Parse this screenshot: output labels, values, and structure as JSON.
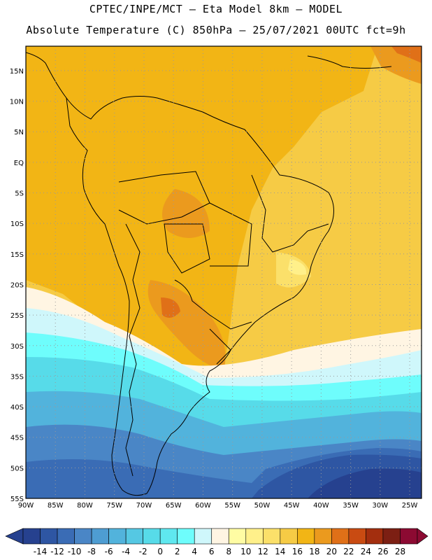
{
  "header": {
    "line1": "CPTEC/INPE/MCT –  Eta Model 8km – MODEL",
    "line2": "Absolute Temperature (C) 850hPa – 25/07/2021 00UTC fct=9h"
  },
  "map": {
    "lat_labels": [
      "15N",
      "10N",
      "5N",
      "EQ",
      "5S",
      "10S",
      "15S",
      "20S",
      "25S",
      "30S",
      "35S",
      "40S",
      "45S",
      "50S",
      "55S"
    ],
    "lon_labels": [
      "90W",
      "85W",
      "80W",
      "75W",
      "70W",
      "65W",
      "60W",
      "55W",
      "50W",
      "45W",
      "40W",
      "35W",
      "30W",
      "25W"
    ],
    "lat_values": [
      15,
      10,
      5,
      0,
      -5,
      -10,
      -15,
      -20,
      -25,
      -30,
      -35,
      -40,
      -45,
      -50,
      -55
    ],
    "lon_values": [
      -90,
      -85,
      -80,
      -75,
      -70,
      -65,
      -60,
      -55,
      -50,
      -45,
      -40,
      -35,
      -30,
      -25
    ],
    "lat_range": [
      -55,
      19
    ],
    "lon_range": [
      -90,
      -23
    ]
  },
  "colorbar": {
    "labels": [
      "-14",
      "-12",
      "-10",
      "-8",
      "-6",
      "-4",
      "-2",
      "0",
      "2",
      "4",
      "6",
      "8",
      "10",
      "12",
      "14",
      "16",
      "18",
      "20",
      "22",
      "24",
      "26",
      "28"
    ],
    "colors": [
      "#26418f",
      "#2e56a3",
      "#3a6cb5",
      "#4a86c6",
      "#4e9dd2",
      "#52b3dc",
      "#55c8e3",
      "#57dbe9",
      "#5fe8ef",
      "#6efdfc",
      "#cff7fb",
      "#fff5e3",
      "#fffca3",
      "#fff08a",
      "#fbe06a",
      "#f6cb45",
      "#f2b515",
      "#eb9a1e",
      "#e07018",
      "#c94b12",
      "#a32e0e",
      "#7c1f13",
      "#8c0a32"
    ],
    "low_arrow_color": "#26418f",
    "high_arrow_color": "#8c0a32"
  }
}
